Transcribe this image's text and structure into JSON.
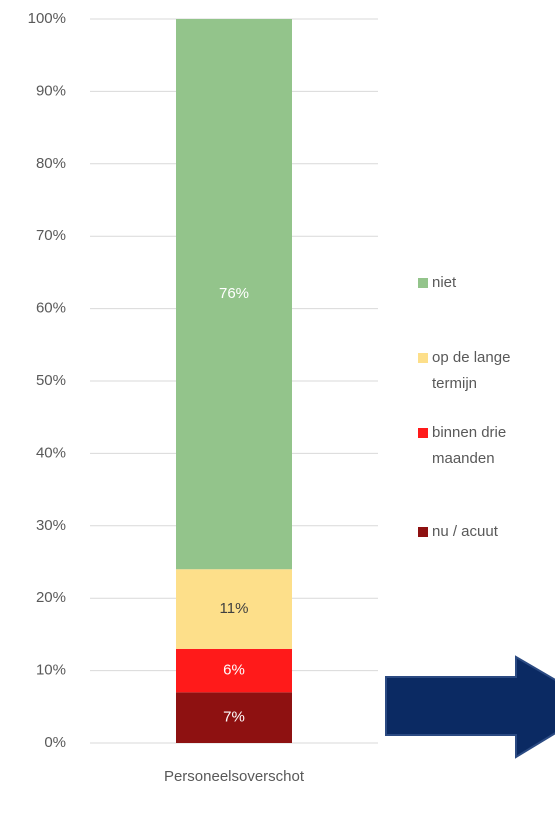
{
  "chart_data": {
    "type": "stacked_bar",
    "categories": [
      "Personeelsoverschot"
    ],
    "series": [
      {
        "name": "nu / acuut",
        "color": "#8e1111",
        "values": [
          7
        ],
        "value_labels": [
          "7%"
        ]
      },
      {
        "name": "binnen drie maanden",
        "color": "#ff1a1a",
        "values": [
          6
        ],
        "value_labels": [
          "6%"
        ]
      },
      {
        "name": "op de lange termijn",
        "color": "#fddf8a",
        "values": [
          11
        ],
        "value_labels": [
          "11%"
        ]
      },
      {
        "name": "niet",
        "color": "#93c48b",
        "values": [
          76
        ],
        "value_labels": [
          "76%"
        ]
      }
    ],
    "ylim": [
      0,
      100
    ],
    "yticks": [
      {
        "value": 0,
        "label": "0%"
      },
      {
        "value": 10,
        "label": "10%"
      },
      {
        "value": 20,
        "label": "20%"
      },
      {
        "value": 30,
        "label": "30%"
      },
      {
        "value": 40,
        "label": "40%"
      },
      {
        "value": 50,
        "label": "50%"
      },
      {
        "value": 60,
        "label": "60%"
      },
      {
        "value": 70,
        "label": "70%"
      },
      {
        "value": 80,
        "label": "80%"
      },
      {
        "value": 90,
        "label": "90%"
      },
      {
        "value": 100,
        "label": "100%"
      }
    ],
    "grid": true,
    "legend": "right"
  }
}
